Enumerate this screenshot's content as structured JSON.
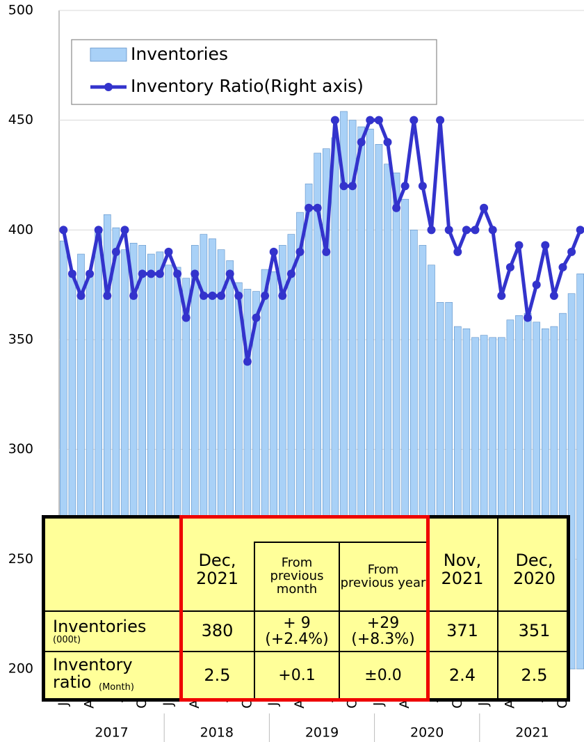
{
  "chart_data": {
    "type": "combo",
    "categories": [
      "Jan",
      null,
      null,
      "Apr",
      null,
      null,
      "Jul",
      null,
      null,
      "Oct",
      null,
      null,
      "Jan",
      null,
      null,
      "Apr",
      null,
      null,
      "Jul",
      null,
      null,
      "Oct",
      null,
      null,
      "Jan",
      null,
      null,
      "Apr",
      null,
      null,
      "Jul",
      null,
      null,
      "Oct",
      null,
      null,
      "Jan",
      null,
      null,
      "Apr",
      null,
      null,
      "Jul",
      null,
      null,
      "Oct",
      null,
      null,
      "Jan",
      null,
      null,
      "Apr",
      null,
      null,
      "Jul",
      null,
      null,
      "Oct",
      null,
      null
    ],
    "year_labels": [
      "2017",
      "2018",
      "2019",
      "2020",
      "2021"
    ],
    "series": [
      {
        "name": "Inventories",
        "type": "bar",
        "color": "#a9d1f7",
        "values": [
          395,
          381,
          389,
          381,
          400,
          407,
          401,
          391,
          394,
          393,
          389,
          390,
          384,
          383,
          378,
          393,
          398,
          396,
          391,
          386,
          376,
          373,
          372,
          382,
          381,
          393,
          398,
          408,
          421,
          435,
          437,
          442,
          454,
          450,
          447,
          446,
          439,
          430,
          426,
          414,
          400,
          393,
          384,
          367,
          367,
          356,
          355,
          351,
          352,
          351,
          351,
          359,
          361,
          362,
          358,
          355,
          356,
          362,
          371,
          380
        ]
      },
      {
        "name": "Inventory Ratio(Right axis)",
        "type": "line",
        "axis": "y2",
        "color": "#3333cc",
        "values": [
          2.5,
          2.3,
          2.2,
          2.3,
          2.5,
          2.2,
          2.4,
          2.5,
          2.2,
          2.3,
          2.3,
          2.3,
          2.4,
          2.3,
          2.1,
          2.3,
          2.2,
          2.2,
          2.2,
          2.3,
          2.2,
          1.9,
          2.1,
          2.2,
          2.4,
          2.2,
          2.3,
          2.4,
          2.6,
          2.6,
          2.4,
          3.0,
          2.7,
          2.7,
          2.9,
          3.0,
          3.0,
          2.9,
          2.6,
          2.7,
          3.0,
          2.7,
          2.5,
          3.0,
          2.5,
          2.4,
          2.5,
          2.5,
          2.6,
          2.5,
          2.2,
          2.33,
          2.43,
          2.1,
          2.25,
          2.43,
          2.2,
          2.33,
          2.4,
          2.5
        ]
      }
    ],
    "ylim": [
      200,
      500
    ],
    "yticks": [
      200,
      250,
      300,
      350,
      400,
      450,
      500
    ],
    "y2lim": [
      0.5,
      3.5
    ],
    "grid": true,
    "legend": "top-left"
  },
  "table": {
    "columns": [
      "Dec, 2021",
      "From previous month",
      "From previous year",
      "Nov, 2021",
      "Dec, 2020"
    ],
    "rows": [
      {
        "label": "Inventories",
        "unit": "(000t)",
        "cells": [
          {
            "value": "380"
          },
          {
            "value": "+ 9",
            "percent": "(+2.4%)"
          },
          {
            "value": "+29",
            "percent": "(+8.3%)"
          },
          {
            "value": "371"
          },
          {
            "value": "351"
          }
        ]
      },
      {
        "label": "Inventory ratio",
        "unit": "(Month)",
        "cells": [
          {
            "value": "2.5"
          },
          {
            "value": "+0.1"
          },
          {
            "value": "±0.0"
          },
          {
            "value": "2.4"
          },
          {
            "value": "2.5"
          }
        ]
      }
    ]
  }
}
